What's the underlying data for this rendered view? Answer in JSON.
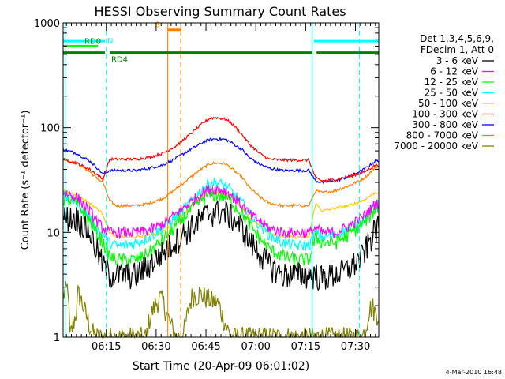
{
  "chart_data": {
    "type": "line",
    "title": "HESSI Observing Summary Count Rates",
    "xlabel": "Start Time (20-Apr-09 06:01:02)",
    "ylabel": "Count Rate (s⁻¹ detector⁻¹)",
    "footer": "4-Mar-2010 16:48",
    "x_unit": "minutes of day (06:00 = 360)",
    "xlim": [
      362,
      457
    ],
    "ylim": [
      1,
      1000
    ],
    "y_scale": "log",
    "x_ticks": [
      {
        "v": 375,
        "label": "06:15"
      },
      {
        "v": 390,
        "label": "06:30"
      },
      {
        "v": 405,
        "label": "06:45"
      },
      {
        "v": 420,
        "label": "07:00"
      },
      {
        "v": 435,
        "label": "07:15"
      },
      {
        "v": 450,
        "label": "07:30"
      }
    ],
    "y_ticks": [
      {
        "v": 1,
        "label": "1"
      },
      {
        "v": 10,
        "label": "10"
      },
      {
        "v": 100,
        "label": "100"
      },
      {
        "v": 1000,
        "label": "1000"
      }
    ],
    "legend": {
      "placement": "right",
      "header": [
        "Det 1,3,4,5,6,9,",
        "FDecim 1, Att 0"
      ]
    },
    "series": [
      {
        "name": "3 - 6 keV",
        "color": "#000000",
        "noise": 0.3,
        "x": [
          362,
          366,
          370,
          372,
          374,
          376,
          378,
          380,
          384,
          388,
          392,
          396,
          400,
          404,
          406,
          408,
          411,
          413,
          416,
          418,
          421,
          424,
          428,
          432,
          436,
          438,
          440,
          444,
          448,
          452,
          454,
          456
        ],
        "y": [
          14,
          14,
          10,
          7,
          5,
          4,
          4,
          4,
          4,
          5,
          6.5,
          8.5,
          11,
          14,
          15.5,
          16,
          15.5,
          14,
          11,
          8.5,
          6.5,
          5,
          4,
          4,
          4,
          4,
          3.7,
          4,
          4.5,
          6,
          8,
          11
        ]
      },
      {
        "name": "6 - 12 keV",
        "color": "#ff00ff",
        "noise": 0.12,
        "x": [
          362,
          366,
          370,
          372,
          374,
          376,
          378,
          380,
          384,
          388,
          392,
          396,
          400,
          404,
          406,
          408,
          411,
          413,
          416,
          418,
          421,
          424,
          428,
          432,
          436,
          438,
          440,
          444,
          448,
          452,
          454,
          456
        ],
        "y": [
          24,
          22,
          16,
          13,
          11,
          10,
          10,
          10,
          10,
          10.5,
          12,
          15,
          19,
          24,
          26,
          26,
          25,
          22,
          18,
          15,
          13,
          11,
          10,
          10,
          10,
          11,
          10,
          10,
          11.5,
          14,
          16,
          19
        ]
      },
      {
        "name": "12 - 25 keV",
        "color": "#00ff00",
        "noise": 0.15,
        "x": [
          362,
          366,
          370,
          372,
          374,
          376,
          378,
          380,
          384,
          388,
          392,
          396,
          400,
          404,
          406,
          408,
          411,
          413,
          416,
          418,
          421,
          424,
          428,
          432,
          436,
          438,
          440,
          444,
          448,
          452,
          454,
          456
        ],
        "y": [
          21,
          19,
          13,
          10,
          8,
          6,
          5.5,
          5.5,
          5.5,
          6.5,
          8.5,
          11.5,
          16,
          21,
          23,
          23,
          22,
          19,
          15,
          12,
          9,
          7,
          6,
          5.5,
          5.5,
          9,
          8,
          8,
          9.5,
          12,
          14,
          17
        ]
      },
      {
        "name": "25 - 50 keV",
        "color": "#00ffff",
        "noise": 0.12,
        "x": [
          362,
          366,
          370,
          372,
          374,
          376,
          378,
          380,
          384,
          388,
          392,
          396,
          400,
          404,
          406,
          408,
          411,
          413,
          416,
          418,
          421,
          424,
          428,
          432,
          436,
          438,
          440,
          444,
          448,
          452,
          454,
          456
        ],
        "y": [
          22,
          20,
          14,
          11,
          9.5,
          8,
          7.5,
          7.5,
          8,
          9,
          11,
          14,
          19,
          26,
          30,
          30,
          28,
          24,
          19,
          15,
          12,
          9.5,
          8,
          7.5,
          7.5,
          10,
          9,
          9.5,
          11,
          13,
          15,
          18
        ]
      },
      {
        "name": "50 - 100 keV",
        "color": "#ffcc00",
        "noise": 0.03,
        "x": [
          362,
          366,
          370,
          372,
          374,
          376,
          378,
          380,
          384,
          388,
          392,
          396,
          400,
          404,
          406,
          408,
          411,
          413,
          416,
          418,
          421,
          424,
          428,
          432,
          436,
          438,
          440,
          444,
          448,
          452,
          454,
          456
        ],
        "y": [
          25,
          23,
          19,
          17,
          15,
          10,
          9,
          9,
          9,
          9.5,
          10,
          13,
          17,
          22,
          24,
          24,
          23,
          21,
          17,
          14,
          12,
          10,
          9,
          9,
          9,
          19,
          16,
          17,
          18,
          20,
          22,
          24
        ]
      },
      {
        "name": "100 - 300 keV",
        "color": "#ff0000",
        "noise": 0.03,
        "x": [
          362,
          366,
          370,
          372,
          374,
          376,
          378,
          380,
          384,
          388,
          392,
          396,
          400,
          404,
          406,
          408,
          411,
          413,
          416,
          418,
          421,
          424,
          428,
          432,
          436,
          438,
          440,
          444,
          448,
          452,
          454,
          456
        ],
        "y": [
          50,
          46,
          40,
          36,
          32,
          50,
          50,
          50,
          50,
          52,
          57,
          67,
          85,
          110,
          122,
          125,
          120,
          108,
          85,
          70,
          57,
          50,
          49,
          49,
          49,
          33,
          31,
          32,
          34,
          37,
          40,
          44
        ]
      },
      {
        "name": "300 - 800 keV",
        "color": "#0000ff",
        "noise": 0.03,
        "x": [
          362,
          366,
          370,
          372,
          374,
          376,
          378,
          380,
          384,
          388,
          392,
          396,
          400,
          404,
          406,
          408,
          411,
          413,
          416,
          418,
          421,
          424,
          428,
          432,
          436,
          438,
          440,
          444,
          448,
          452,
          454,
          456
        ],
        "y": [
          62,
          57,
          48,
          42,
          36,
          39,
          39,
          39,
          39,
          41,
          44,
          51,
          61,
          72,
          77,
          78,
          77,
          71,
          61,
          52,
          45,
          41,
          39,
          39,
          39,
          31,
          30,
          31,
          34,
          39,
          43,
          48
        ]
      },
      {
        "name": "800 - 7000 keV",
        "color": "#ff8000",
        "noise": 0.03,
        "x": [
          362,
          366,
          370,
          372,
          374,
          376,
          378,
          380,
          384,
          388,
          392,
          396,
          400,
          404,
          406,
          408,
          411,
          413,
          416,
          418,
          421,
          424,
          428,
          432,
          436,
          438,
          440,
          444,
          448,
          452,
          454,
          456
        ],
        "y": [
          50,
          46,
          38,
          33,
          30,
          20,
          18,
          18,
          18,
          19,
          21,
          26,
          33,
          41,
          45,
          46,
          45,
          40,
          33,
          27,
          22,
          19,
          18,
          18,
          18,
          25,
          24,
          25,
          28,
          32,
          36,
          42
        ]
      },
      {
        "name": "7000 - 20000 keV",
        "color": "#808000",
        "noise": 0.25,
        "x": [
          362,
          363.5,
          364,
          365,
          366,
          366.5,
          367,
          368,
          369,
          370,
          371,
          372,
          373,
          374,
          375,
          376,
          377,
          378,
          379,
          380,
          381,
          382,
          383,
          384,
          385,
          386,
          387,
          388,
          389,
          390,
          391,
          392,
          393,
          394,
          395,
          396,
          397,
          398,
          399,
          400,
          401,
          402,
          403,
          404,
          405,
          406,
          407,
          408,
          409,
          410,
          411,
          412,
          413,
          414,
          415,
          416,
          417,
          418,
          419,
          420,
          421,
          422,
          423,
          424,
          425,
          426,
          427,
          428,
          429,
          430,
          431,
          432,
          433,
          434,
          435,
          436,
          437,
          438,
          439,
          440,
          441,
          442,
          443,
          444,
          445,
          446,
          447,
          448,
          449,
          450,
          451,
          452,
          453,
          454,
          455,
          456
        ],
        "y": [
          2.5,
          3,
          1,
          1.3,
          1.8,
          2.6,
          2.5,
          2,
          1.6,
          1.3,
          1.1,
          1,
          1,
          1,
          1,
          1,
          1,
          1,
          1,
          1,
          1,
          1,
          1,
          1,
          1,
          1,
          1,
          1.5,
          1.8,
          2.1,
          2.4,
          2.2,
          1.8,
          1.4,
          1.2,
          1,
          1,
          1,
          1.4,
          2,
          2.6,
          2.5,
          2.6,
          2.5,
          2.4,
          2.3,
          2.2,
          2.2,
          2,
          1.6,
          1.3,
          1.1,
          1,
          1,
          1,
          1,
          1,
          1,
          1,
          1,
          1,
          1,
          1,
          1,
          1,
          1,
          1,
          1,
          1,
          1,
          1,
          1,
          1,
          1,
          1,
          1,
          1,
          1,
          1,
          1,
          1,
          1,
          1,
          1,
          1,
          1,
          1,
          1,
          1,
          1,
          1,
          1,
          1.2,
          1.8,
          2,
          1.7
        ]
      }
    ],
    "annotations": {
      "vertical_lines": [
        {
          "x": 362.6,
          "color": "#00ffff",
          "style": "solid"
        },
        {
          "x": 375,
          "color": "#00ffff",
          "style": "dashed"
        },
        {
          "x": 437,
          "color": "#00ffff",
          "style": "solid"
        },
        {
          "x": 451.2,
          "color": "#00ffff",
          "style": "dashed"
        },
        {
          "x": 393.5,
          "color": "#ff8000",
          "style": "solid"
        },
        {
          "x": 397.4,
          "color": "#ff8000",
          "style": "dashed"
        }
      ],
      "status_bars": [
        {
          "label": "N",
          "color": "#00ffff",
          "y": 670,
          "segments": [
            [
              362,
              374.6
            ],
            [
              437.5,
              457
            ]
          ]
        },
        {
          "label": "RD0",
          "color": "#00ff00",
          "y": 600,
          "segments": [
            [
              362,
              372.5
            ]
          ]
        },
        {
          "label": "RD4",
          "color": "#008000",
          "y": 520,
          "segments": [
            [
              362,
              374.6
            ],
            [
              376,
              437
            ],
            [
              438.3,
              457
            ]
          ]
        },
        {
          "label": "S",
          "color": "#ff8000",
          "y": 860,
          "segments": [
            [
              393.5,
              397.4
            ]
          ]
        }
      ]
    },
    "grid": false
  }
}
